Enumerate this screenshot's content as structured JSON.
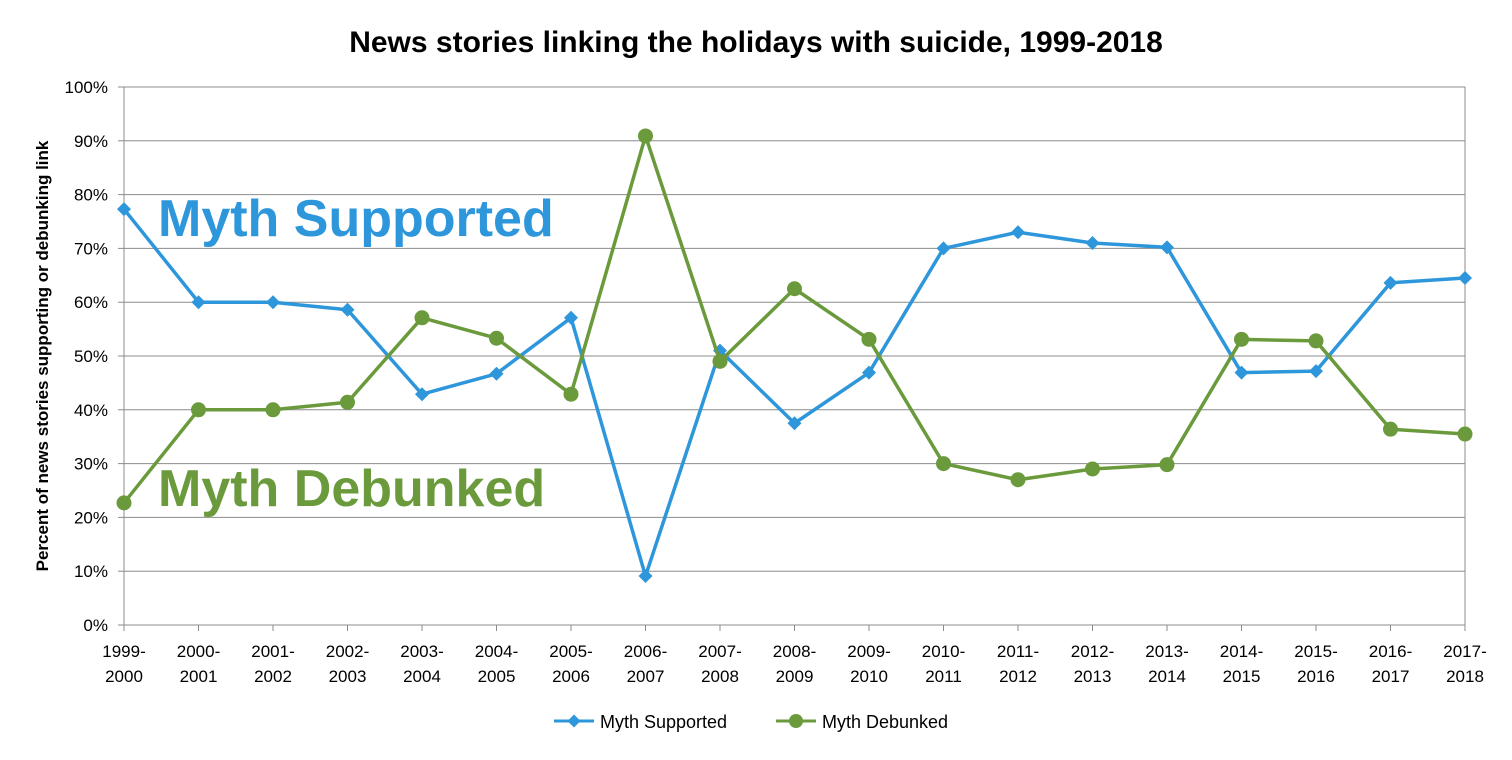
{
  "chart_data": {
    "type": "line",
    "title": "News stories linking the holidays with suicide, 1999-2018",
    "xlabel": "",
    "ylabel": "Percent of news stories supporting or debunking link",
    "ylim": [
      0,
      100
    ],
    "y_ticks": [
      "0%",
      "10%",
      "20%",
      "30%",
      "40%",
      "50%",
      "60%",
      "70%",
      "80%",
      "90%",
      "100%"
    ],
    "grid": "horizontal",
    "legend_position": "bottom",
    "categories": [
      [
        "1999-",
        "2000"
      ],
      [
        "2000-",
        "2001"
      ],
      [
        "2001-",
        "2002"
      ],
      [
        "2002-",
        "2003"
      ],
      [
        "2003-",
        "2004"
      ],
      [
        "2004-",
        "2005"
      ],
      [
        "2005-",
        "2006"
      ],
      [
        "2006-",
        "2007"
      ],
      [
        "2007-",
        "2008"
      ],
      [
        "2008-",
        "2009"
      ],
      [
        "2009-",
        "2010"
      ],
      [
        "2010-",
        "2011"
      ],
      [
        "2011-",
        "2012"
      ],
      [
        "2012-",
        "2013"
      ],
      [
        "2013-",
        "2014"
      ],
      [
        "2014-",
        "2015"
      ],
      [
        "2015-",
        "2016"
      ],
      [
        "2016-",
        "2017"
      ],
      [
        "2017-",
        "2018"
      ]
    ],
    "series": [
      {
        "name": "Myth Supported",
        "color": "#2E96DA",
        "marker": "diamond",
        "values": [
          77.3,
          60,
          60,
          58.6,
          42.9,
          46.7,
          57.1,
          9.1,
          51,
          37.5,
          46.9,
          70,
          73,
          71,
          70.2,
          46.9,
          47.2,
          63.6,
          64.5
        ]
      },
      {
        "name": "Myth Debunked",
        "color": "#6A9A3C",
        "marker": "circle",
        "values": [
          22.7,
          40,
          40,
          41.4,
          57.1,
          53.3,
          42.9,
          90.9,
          49,
          62.5,
          53.1,
          30,
          27,
          29,
          29.8,
          53.1,
          52.8,
          36.4,
          35.5
        ]
      }
    ],
    "annotations": [
      {
        "text": "Myth Supported",
        "color": "#2E96DA"
      },
      {
        "text": "Myth Debunked",
        "color": "#6A9A3C"
      }
    ]
  }
}
